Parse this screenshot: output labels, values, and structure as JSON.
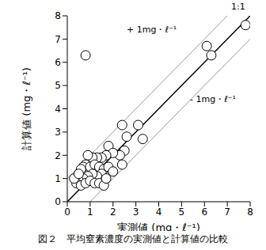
{
  "chart_data": {
    "type": "scatter",
    "title": "図２　平均窒素濃度の実測値と計算値の比較",
    "x_label": "実測値 (mg・ℓ⁻¹)",
    "y_label": "計算値 (mg・ℓ⁻¹)",
    "x": [
      0.8,
      7.8,
      6.1,
      6.3,
      3.1,
      3.3,
      2.4,
      2.6,
      2.5,
      2.3,
      2.4,
      1.8,
      2.0,
      1.7,
      1.5,
      1.3,
      1.1,
      0.9,
      0.8,
      0.7,
      0.6,
      1.0,
      1.2,
      1.4,
      1.6,
      1.8,
      1.5,
      1.3,
      1.1,
      0.9,
      0.7,
      0.5,
      0.4,
      0.6,
      0.8,
      1.0,
      1.2,
      1.4,
      1.6,
      1.7,
      2.0,
      0.3,
      0.5
    ],
    "values": [
      6.3,
      7.6,
      6.7,
      6.3,
      3.3,
      2.7,
      3.3,
      2.8,
      2.2,
      2.0,
      1.6,
      2.4,
      2.1,
      2.0,
      1.9,
      1.9,
      1.9,
      2.0,
      1.6,
      1.5,
      1.4,
      1.5,
      1.6,
      1.5,
      1.4,
      1.5,
      1.2,
      1.1,
      1.2,
      1.1,
      1.0,
      0.9,
      0.8,
      0.7,
      0.8,
      0.9,
      0.8,
      0.8,
      0.7,
      1.0,
      1.3,
      1.0,
      1.2
    ],
    "marker": "open_circle",
    "xlim": [
      0,
      8
    ],
    "ylim": [
      0,
      8
    ],
    "xticks": [
      0,
      1,
      2,
      3,
      4,
      5,
      6,
      7,
      8
    ],
    "yticks": [
      0,
      1,
      2,
      3,
      4,
      5,
      6,
      7,
      8
    ],
    "grid": false,
    "reference_lines": [
      {
        "name": "1:1",
        "offset": 0,
        "color": "#000000"
      },
      {
        "name": "+ 1mg・ℓ⁻¹",
        "offset": 1,
        "color": "#999999"
      },
      {
        "name": "- 1mg・ℓ⁻¹",
        "offset": -1,
        "color": "#999999"
      }
    ]
  }
}
